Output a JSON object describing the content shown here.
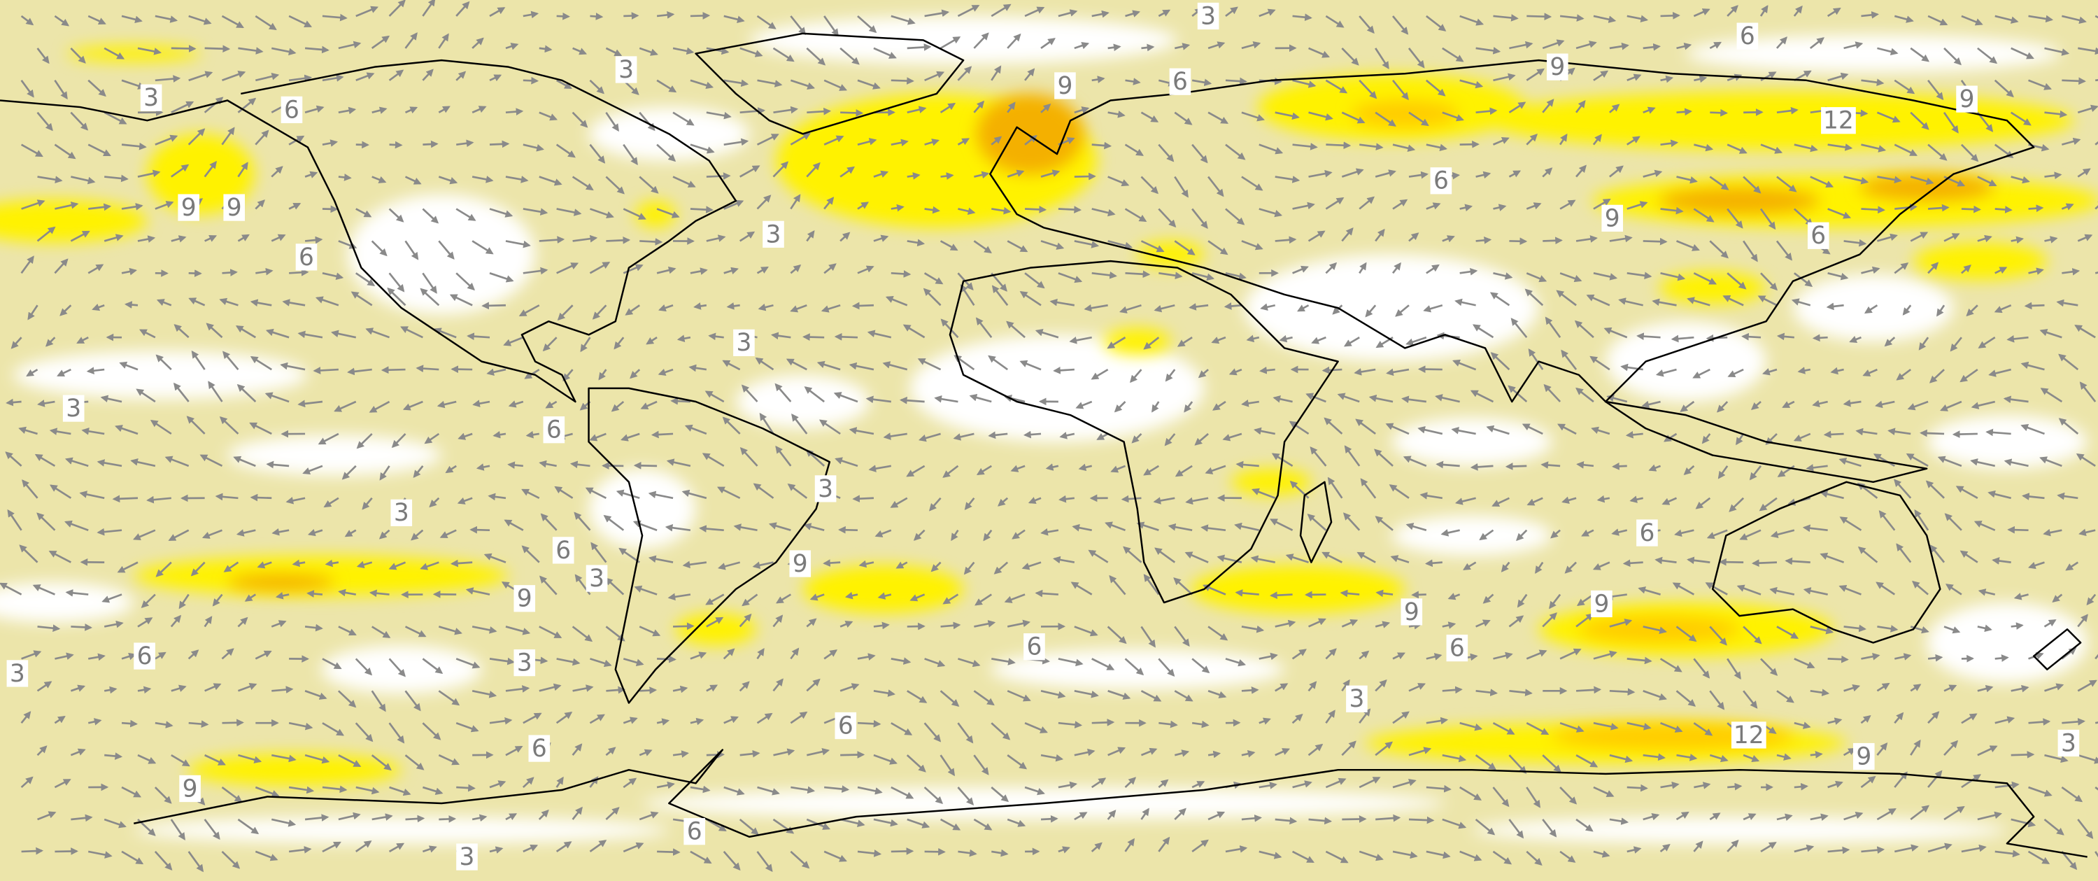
{
  "contour_labels": [
    "3",
    "6",
    "3",
    "9",
    "6",
    "9",
    "9",
    "12",
    "3",
    "6",
    "9",
    "9",
    "6",
    "9",
    "6",
    "6",
    "3",
    "3",
    "3",
    "6",
    "3",
    "3",
    "6",
    "3",
    "9",
    "9",
    "6",
    "9",
    "9",
    "6",
    "3",
    "3",
    "6",
    "6",
    "3",
    "6",
    "12",
    "3",
    "6",
    "9",
    "9",
    "3",
    "6"
  ]
}
